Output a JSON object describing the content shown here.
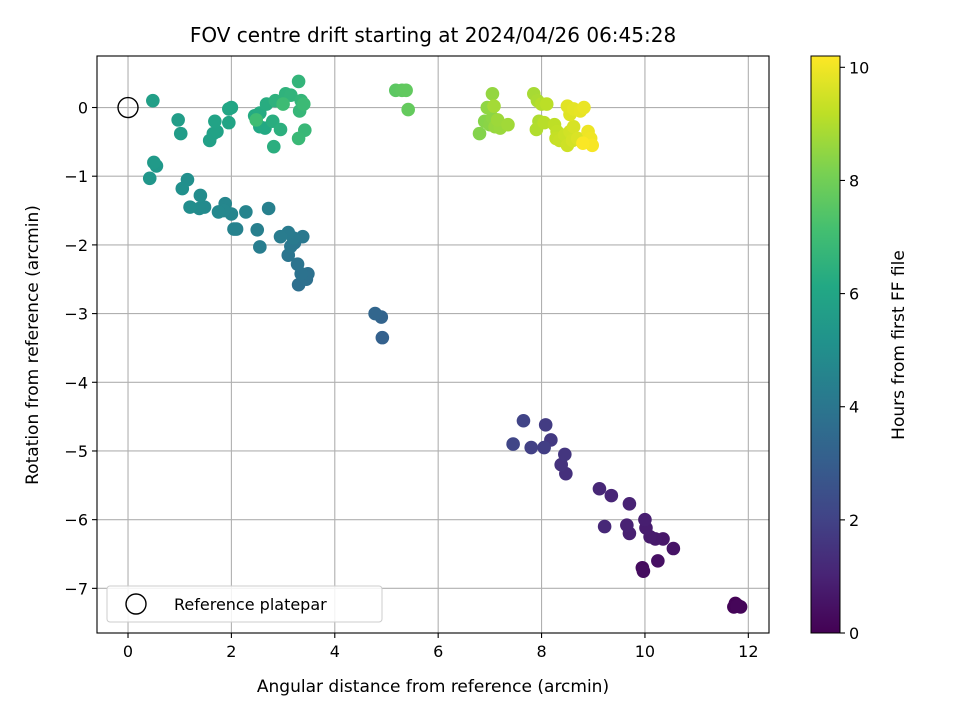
{
  "chart_data": {
    "type": "scatter",
    "title": "FOV centre drift starting at 2024/04/26 06:45:28",
    "xlabel": "Angular distance from reference (arcmin)",
    "ylabel": "Rotation from reference (arcmin)",
    "xlim": [
      -0.6,
      12.4
    ],
    "ylim": [
      -7.65,
      0.75
    ],
    "xticks": [
      0,
      2,
      4,
      6,
      8,
      10,
      12
    ],
    "yticks": [
      0,
      -1,
      -2,
      -3,
      -4,
      -5,
      -6,
      -7
    ],
    "grid": true,
    "colormap": "viridis",
    "colorbar": {
      "label": "Hours from first FF file",
      "range": [
        0,
        10.2
      ],
      "ticks": [
        0,
        2,
        4,
        6,
        8,
        10
      ]
    },
    "legend": {
      "position": "lower-left",
      "entries": [
        {
          "label": "Reference platepar",
          "marker": "open-circle"
        }
      ]
    },
    "reference_point": {
      "x": 0,
      "y": 0
    },
    "points": [
      {
        "x": 11.75,
        "y": -7.22,
        "h": 0.05
      },
      {
        "x": 11.8,
        "y": -7.25,
        "h": 0.08
      },
      {
        "x": 11.72,
        "y": -7.27,
        "h": 0.1
      },
      {
        "x": 11.85,
        "y": -7.27,
        "h": 0.12
      },
      {
        "x": 11.78,
        "y": -7.26,
        "h": 0.15
      },
      {
        "x": 9.95,
        "y": -6.7,
        "h": 0.3
      },
      {
        "x": 9.97,
        "y": -6.75,
        "h": 0.35
      },
      {
        "x": 10.25,
        "y": -6.6,
        "h": 0.45
      },
      {
        "x": 10.55,
        "y": -6.42,
        "h": 0.55
      },
      {
        "x": 10.35,
        "y": -6.28,
        "h": 0.65
      },
      {
        "x": 10.2,
        "y": -6.28,
        "h": 0.7
      },
      {
        "x": 10.1,
        "y": -6.25,
        "h": 0.75
      },
      {
        "x": 10.02,
        "y": -6.12,
        "h": 0.8
      },
      {
        "x": 10.0,
        "y": -6.0,
        "h": 0.85
      },
      {
        "x": 9.7,
        "y": -6.2,
        "h": 0.9
      },
      {
        "x": 9.65,
        "y": -6.08,
        "h": 0.95
      },
      {
        "x": 9.7,
        "y": -5.77,
        "h": 1.0
      },
      {
        "x": 9.35,
        "y": -5.65,
        "h": 1.05
      },
      {
        "x": 9.12,
        "y": -5.55,
        "h": 1.1
      },
      {
        "x": 9.22,
        "y": -6.1,
        "h": 1.15
      },
      {
        "x": 8.47,
        "y": -5.33,
        "h": 1.4
      },
      {
        "x": 8.38,
        "y": -5.2,
        "h": 1.5
      },
      {
        "x": 8.45,
        "y": -5.05,
        "h": 1.6
      },
      {
        "x": 8.18,
        "y": -4.84,
        "h": 1.7
      },
      {
        "x": 8.08,
        "y": -4.62,
        "h": 1.8
      },
      {
        "x": 8.05,
        "y": -4.95,
        "h": 1.85
      },
      {
        "x": 7.8,
        "y": -4.95,
        "h": 1.95
      },
      {
        "x": 7.65,
        "y": -4.56,
        "h": 2.05
      },
      {
        "x": 7.45,
        "y": -4.9,
        "h": 2.1
      },
      {
        "x": 4.92,
        "y": -3.35,
        "h": 3.15
      },
      {
        "x": 4.9,
        "y": -3.05,
        "h": 3.25
      },
      {
        "x": 4.78,
        "y": -3.0,
        "h": 3.35
      },
      {
        "x": 3.3,
        "y": -2.58,
        "h": 3.7
      },
      {
        "x": 3.45,
        "y": -2.5,
        "h": 3.75
      },
      {
        "x": 3.48,
        "y": -2.42,
        "h": 3.8
      },
      {
        "x": 3.35,
        "y": -2.42,
        "h": 3.85
      },
      {
        "x": 3.28,
        "y": -2.28,
        "h": 3.9
      },
      {
        "x": 3.1,
        "y": -2.15,
        "h": 3.95
      },
      {
        "x": 3.22,
        "y": -1.97,
        "h": 4.0
      },
      {
        "x": 3.15,
        "y": -2.02,
        "h": 4.05
      },
      {
        "x": 3.38,
        "y": -1.88,
        "h": 4.1
      },
      {
        "x": 3.2,
        "y": -1.9,
        "h": 4.15
      },
      {
        "x": 3.1,
        "y": -1.82,
        "h": 4.2
      },
      {
        "x": 2.95,
        "y": -1.88,
        "h": 4.25
      },
      {
        "x": 2.55,
        "y": -2.03,
        "h": 4.3
      },
      {
        "x": 2.5,
        "y": -1.78,
        "h": 4.35
      },
      {
        "x": 2.72,
        "y": -1.47,
        "h": 4.4
      },
      {
        "x": 2.1,
        "y": -1.77,
        "h": 4.45
      },
      {
        "x": 2.05,
        "y": -1.77,
        "h": 4.5
      },
      {
        "x": 2.28,
        "y": -1.52,
        "h": 4.55
      },
      {
        "x": 2.0,
        "y": -1.55,
        "h": 4.6
      },
      {
        "x": 1.88,
        "y": -1.4,
        "h": 4.65
      },
      {
        "x": 1.85,
        "y": -1.5,
        "h": 4.7
      },
      {
        "x": 1.75,
        "y": -1.52,
        "h": 4.75
      },
      {
        "x": 1.48,
        "y": -1.45,
        "h": 4.8
      },
      {
        "x": 1.38,
        "y": -1.47,
        "h": 4.85
      },
      {
        "x": 1.4,
        "y": -1.28,
        "h": 4.9
      },
      {
        "x": 1.2,
        "y": -1.45,
        "h": 4.95
      },
      {
        "x": 1.15,
        "y": -1.05,
        "h": 5.0
      },
      {
        "x": 1.05,
        "y": -1.18,
        "h": 5.05
      },
      {
        "x": 0.42,
        "y": -1.03,
        "h": 5.3
      },
      {
        "x": 0.55,
        "y": -0.85,
        "h": 5.4
      },
      {
        "x": 0.5,
        "y": -0.8,
        "h": 5.5
      },
      {
        "x": 1.02,
        "y": -0.38,
        "h": 5.6
      },
      {
        "x": 0.97,
        "y": -0.18,
        "h": 5.65
      },
      {
        "x": 0.48,
        "y": 0.1,
        "h": 5.7
      },
      {
        "x": 1.58,
        "y": -0.48,
        "h": 5.75
      },
      {
        "x": 1.65,
        "y": -0.38,
        "h": 5.8
      },
      {
        "x": 1.72,
        "y": -0.35,
        "h": 5.85
      },
      {
        "x": 1.68,
        "y": -0.2,
        "h": 5.9
      },
      {
        "x": 1.95,
        "y": -0.22,
        "h": 5.95
      },
      {
        "x": 2.0,
        "y": 0.0,
        "h": 6.0
      },
      {
        "x": 1.95,
        "y": -0.02,
        "h": 6.05
      },
      {
        "x": 2.55,
        "y": -0.28,
        "h": 6.1
      },
      {
        "x": 2.65,
        "y": -0.3,
        "h": 6.15
      },
      {
        "x": 2.45,
        "y": -0.12,
        "h": 6.2
      },
      {
        "x": 2.55,
        "y": -0.08,
        "h": 6.25
      },
      {
        "x": 2.68,
        "y": 0.05,
        "h": 6.3
      },
      {
        "x": 2.8,
        "y": -0.2,
        "h": 6.35
      },
      {
        "x": 2.82,
        "y": -0.57,
        "h": 6.4
      },
      {
        "x": 2.95,
        "y": -0.32,
        "h": 6.45
      },
      {
        "x": 2.85,
        "y": 0.1,
        "h": 6.5
      },
      {
        "x": 3.05,
        "y": 0.2,
        "h": 6.55
      },
      {
        "x": 3.15,
        "y": 0.18,
        "h": 6.6
      },
      {
        "x": 3.3,
        "y": 0.38,
        "h": 6.65
      },
      {
        "x": 3.35,
        "y": 0.1,
        "h": 6.7
      },
      {
        "x": 3.32,
        "y": -0.05,
        "h": 6.75
      },
      {
        "x": 3.42,
        "y": -0.33,
        "h": 6.8
      },
      {
        "x": 3.3,
        "y": -0.45,
        "h": 6.85
      },
      {
        "x": 3.4,
        "y": 0.05,
        "h": 6.9
      },
      {
        "x": 3.0,
        "y": 0.05,
        "h": 6.95
      },
      {
        "x": 2.48,
        "y": -0.18,
        "h": 7.0
      },
      {
        "x": 5.18,
        "y": 0.25,
        "h": 7.6
      },
      {
        "x": 5.3,
        "y": 0.25,
        "h": 7.65
      },
      {
        "x": 5.38,
        "y": 0.25,
        "h": 7.7
      },
      {
        "x": 5.42,
        "y": -0.03,
        "h": 7.75
      },
      {
        "x": 6.8,
        "y": -0.38,
        "h": 8.3
      },
      {
        "x": 6.9,
        "y": -0.2,
        "h": 8.35
      },
      {
        "x": 7.0,
        "y": -0.25,
        "h": 8.4
      },
      {
        "x": 7.05,
        "y": -0.15,
        "h": 8.45
      },
      {
        "x": 6.95,
        "y": 0.0,
        "h": 8.5
      },
      {
        "x": 7.05,
        "y": 0.2,
        "h": 8.55
      },
      {
        "x": 7.1,
        "y": -0.28,
        "h": 8.6
      },
      {
        "x": 7.2,
        "y": -0.3,
        "h": 8.65
      },
      {
        "x": 7.15,
        "y": -0.18,
        "h": 8.7
      },
      {
        "x": 7.35,
        "y": -0.25,
        "h": 8.75
      },
      {
        "x": 7.08,
        "y": 0.02,
        "h": 8.8
      },
      {
        "x": 7.85,
        "y": 0.2,
        "h": 8.85
      },
      {
        "x": 7.92,
        "y": 0.1,
        "h": 8.9
      },
      {
        "x": 7.95,
        "y": -0.2,
        "h": 8.95
      },
      {
        "x": 7.9,
        "y": -0.32,
        "h": 9.0
      },
      {
        "x": 8.0,
        "y": 0.05,
        "h": 9.05
      },
      {
        "x": 8.05,
        "y": -0.22,
        "h": 9.1
      },
      {
        "x": 8.1,
        "y": 0.05,
        "h": 9.15
      },
      {
        "x": 8.25,
        "y": -0.25,
        "h": 9.2
      },
      {
        "x": 8.3,
        "y": -0.35,
        "h": 9.25
      },
      {
        "x": 8.28,
        "y": -0.45,
        "h": 9.3
      },
      {
        "x": 8.35,
        "y": -0.48,
        "h": 9.35
      },
      {
        "x": 8.45,
        "y": -0.4,
        "h": 9.4
      },
      {
        "x": 8.5,
        "y": -0.55,
        "h": 9.45
      },
      {
        "x": 8.55,
        "y": -0.35,
        "h": 9.5
      },
      {
        "x": 8.6,
        "y": -0.48,
        "h": 9.55
      },
      {
        "x": 8.62,
        "y": -0.28,
        "h": 9.6
      },
      {
        "x": 8.7,
        "y": -0.45,
        "h": 9.65
      },
      {
        "x": 8.55,
        "y": -0.1,
        "h": 9.7
      },
      {
        "x": 8.5,
        "y": 0.02,
        "h": 9.75
      },
      {
        "x": 8.62,
        "y": -0.02,
        "h": 9.8
      },
      {
        "x": 8.75,
        "y": -0.05,
        "h": 9.85
      },
      {
        "x": 8.82,
        "y": 0.0,
        "h": 9.9
      },
      {
        "x": 8.9,
        "y": -0.35,
        "h": 9.95
      },
      {
        "x": 8.95,
        "y": -0.45,
        "h": 10.0
      },
      {
        "x": 8.98,
        "y": -0.55,
        "h": 10.1
      },
      {
        "x": 8.8,
        "y": -0.52,
        "h": 10.15
      }
    ]
  }
}
